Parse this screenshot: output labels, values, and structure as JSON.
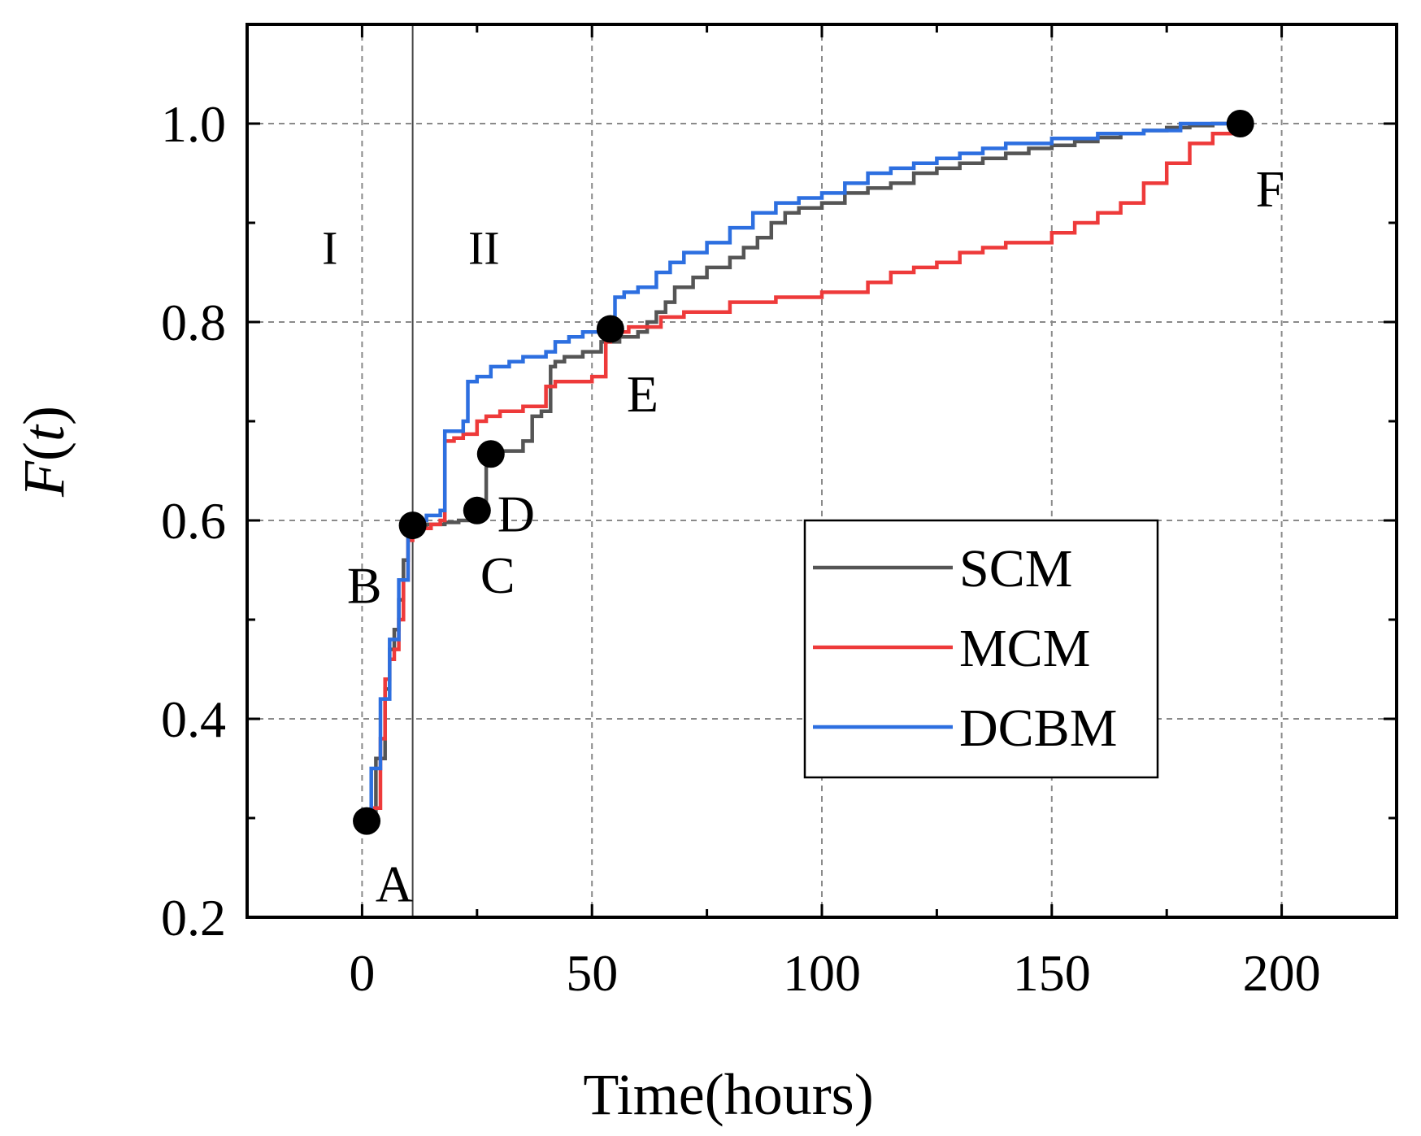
{
  "chart_data": {
    "type": "line",
    "title": "",
    "xlabel": "Time(hours)",
    "ylabel": "F(t)",
    "xlim": [
      -25,
      225
    ],
    "ylim": [
      0.2,
      1.1
    ],
    "grid": true,
    "x_ticks": [
      0,
      50,
      100,
      150,
      200
    ],
    "x_tick_labels": [
      "0",
      "50",
      "100",
      "150",
      "200"
    ],
    "y_ticks": [
      0.2,
      0.4,
      0.6,
      0.8,
      1.0
    ],
    "y_tick_labels": [
      "0.2",
      "0.4",
      "0.6",
      "0.8",
      "1.0"
    ],
    "legend_position": "center-right",
    "vertical_line_x": 11,
    "regions": [
      {
        "label": "I",
        "x": -7,
        "y": 0.875
      },
      {
        "label": "II",
        "x": 26.5,
        "y": 0.875
      }
    ],
    "series": [
      {
        "name": "SCM",
        "color": "#555555",
        "x": [
          1,
          3,
          5,
          6,
          7,
          8,
          9,
          10,
          11,
          14,
          18,
          21,
          24,
          26,
          27,
          30,
          35,
          37,
          39,
          41,
          42,
          44,
          48,
          52,
          56,
          60,
          62,
          64,
          66,
          68,
          72,
          75,
          80,
          83,
          86,
          89,
          92,
          95,
          100,
          105,
          110,
          115,
          120,
          125,
          130,
          135,
          140,
          145,
          150,
          155,
          160,
          165,
          170,
          175,
          180,
          185,
          190
        ],
        "y": [
          0.3,
          0.36,
          0.43,
          0.47,
          0.49,
          0.52,
          0.56,
          0.59,
          0.595,
          0.596,
          0.598,
          0.6,
          0.605,
          0.61,
          0.665,
          0.67,
          0.68,
          0.705,
          0.71,
          0.755,
          0.76,
          0.765,
          0.77,
          0.78,
          0.785,
          0.79,
          0.8,
          0.81,
          0.82,
          0.835,
          0.845,
          0.855,
          0.865,
          0.875,
          0.885,
          0.9,
          0.91,
          0.915,
          0.92,
          0.93,
          0.935,
          0.94,
          0.95,
          0.955,
          0.96,
          0.965,
          0.97,
          0.975,
          0.978,
          0.982,
          0.986,
          0.99,
          0.993,
          0.996,
          0.998,
          1.0,
          1.0
        ],
        "marker_count": 0
      },
      {
        "name": "MCM",
        "color": "#ee3a3a",
        "x": [
          1,
          2,
          4,
          5,
          6,
          7,
          8,
          9,
          10,
          11,
          15,
          17,
          18,
          20,
          22,
          25,
          27,
          30,
          35,
          40,
          42,
          50,
          53,
          54,
          58,
          65,
          70,
          80,
          90,
          100,
          110,
          115,
          120,
          125,
          130,
          135,
          140,
          150,
          155,
          160,
          165,
          170,
          175,
          180,
          185,
          190
        ],
        "y": [
          0.3,
          0.31,
          0.38,
          0.44,
          0.46,
          0.47,
          0.5,
          0.54,
          0.58,
          0.592,
          0.596,
          0.6,
          0.68,
          0.683,
          0.687,
          0.7,
          0.705,
          0.71,
          0.715,
          0.735,
          0.74,
          0.745,
          0.78,
          0.79,
          0.795,
          0.805,
          0.81,
          0.82,
          0.825,
          0.83,
          0.84,
          0.85,
          0.855,
          0.86,
          0.87,
          0.875,
          0.88,
          0.89,
          0.9,
          0.91,
          0.92,
          0.94,
          0.96,
          0.98,
          0.99,
          1.0
        ],
        "marker_count": 0
      },
      {
        "name": "DCBM",
        "color": "#2d6fe0",
        "x": [
          1,
          2,
          4,
          6,
          8,
          10,
          11,
          14,
          17,
          18,
          20,
          22,
          23,
          25,
          28,
          32,
          35,
          40,
          42,
          45,
          48,
          52,
          55,
          57,
          60,
          64,
          67,
          70,
          75,
          80,
          85,
          90,
          95,
          100,
          105,
          110,
          115,
          120,
          125,
          130,
          135,
          140,
          150,
          160,
          170,
          178,
          185,
          190
        ],
        "y": [
          0.3,
          0.35,
          0.42,
          0.48,
          0.54,
          0.59,
          0.6,
          0.605,
          0.61,
          0.69,
          0.69,
          0.7,
          0.74,
          0.745,
          0.755,
          0.76,
          0.765,
          0.77,
          0.78,
          0.785,
          0.79,
          0.8,
          0.825,
          0.83,
          0.835,
          0.85,
          0.86,
          0.87,
          0.88,
          0.895,
          0.91,
          0.92,
          0.925,
          0.93,
          0.94,
          0.95,
          0.955,
          0.96,
          0.965,
          0.97,
          0.975,
          0.98,
          0.985,
          0.99,
          0.993,
          1.0,
          1.0,
          1.0
        ],
        "marker_count": 0
      }
    ],
    "annotations": [
      {
        "label": "A",
        "x": 1,
        "y": 0.297,
        "label_dx": 6,
        "label_dy": -0.063
      },
      {
        "label": "B",
        "x": 11,
        "y": 0.595,
        "label_dx": -10.5,
        "label_dy": -0.06
      },
      {
        "label": "C",
        "x": 25,
        "y": 0.61,
        "label_dx": 4.5,
        "label_dy": -0.065
      },
      {
        "label": "D",
        "x": 28,
        "y": 0.667,
        "label_dx": 5.5,
        "label_dy": -0.06
      },
      {
        "label": "E",
        "x": 54,
        "y": 0.793,
        "label_dx": 7,
        "label_dy": -0.065
      },
      {
        "label": "F",
        "x": 191,
        "y": 1.0,
        "label_dx": 6.5,
        "label_dy": -0.065
      }
    ]
  }
}
